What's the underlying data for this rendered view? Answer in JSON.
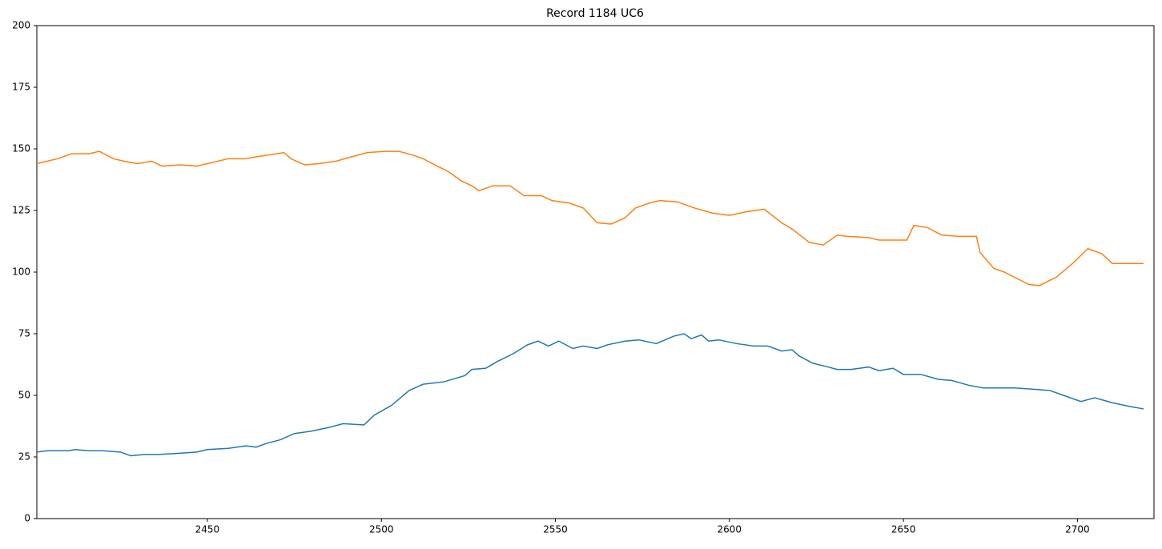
{
  "chart_data": {
    "type": "line",
    "title": "Record 1184 UC6",
    "xlim": [
      2401,
      2722
    ],
    "xticks": [
      2450,
      2500,
      2550,
      2600,
      2650,
      2700
    ],
    "ylim": [
      0,
      200
    ],
    "yticks": [
      0,
      25,
      50,
      75,
      100,
      125,
      150,
      175,
      200
    ],
    "grid": false,
    "series": [
      {
        "color": "#1f77b4",
        "x": [
          2401,
          2404,
          2410,
          2412,
          2416,
          2420,
          2425,
          2428,
          2432,
          2436,
          2442,
          2447,
          2450,
          2456,
          2461,
          2464,
          2467,
          2471,
          2475,
          2480,
          2485,
          2489,
          2495,
          2498,
          2503,
          2508,
          2512,
          2518,
          2524,
          2526,
          2530,
          2533,
          2538,
          2542,
          2545,
          2548,
          2551,
          2555,
          2558,
          2562,
          2565,
          2570,
          2574,
          2579,
          2584,
          2587,
          2589,
          2592,
          2594,
          2597,
          2602,
          2607,
          2611,
          2615,
          2618,
          2620,
          2624,
          2627,
          2631,
          2635,
          2640,
          2643,
          2647,
          2650,
          2655,
          2660,
          2664,
          2669,
          2673,
          2678,
          2682,
          2687,
          2692,
          2696,
          2701,
          2705,
          2710,
          2715,
          2719
        ],
        "values": [
          27,
          27.5,
          27.5,
          28,
          27.5,
          27.5,
          27,
          25.5,
          26,
          26,
          26.5,
          27,
          28,
          28.5,
          29.5,
          29,
          30.5,
          32,
          34.5,
          35.5,
          37,
          38.5,
          38,
          42,
          46,
          52,
          54.5,
          55.5,
          58,
          60.5,
          61,
          63.5,
          67,
          70.5,
          72,
          70,
          72,
          69,
          70,
          69,
          70.5,
          72,
          72.5,
          71,
          74,
          75,
          73,
          74.5,
          72,
          72.5,
          71,
          70,
          70,
          68,
          68.5,
          66,
          63,
          62,
          60.5,
          60.5,
          61.5,
          60,
          61,
          58.5,
          58.5,
          56.5,
          56,
          54,
          53,
          53,
          53,
          52.5,
          52,
          50,
          47.5,
          49,
          47,
          45.5,
          44.5
        ]
      },
      {
        "color": "#ff7f0e",
        "x": [
          2401,
          2404,
          2407,
          2411,
          2416,
          2419,
          2423,
          2426,
          2430,
          2434,
          2437,
          2442,
          2447,
          2450,
          2456,
          2461,
          2465,
          2470,
          2472,
          2474,
          2478,
          2482,
          2487,
          2492,
          2496,
          2501,
          2505,
          2509,
          2512,
          2516,
          2519,
          2523,
          2526,
          2528,
          2532,
          2537,
          2541,
          2546,
          2549,
          2554,
          2558,
          2562,
          2566,
          2570,
          2573,
          2577,
          2580,
          2585,
          2590,
          2595,
          2600,
          2605,
          2610,
          2615,
          2618,
          2623,
          2627,
          2631,
          2634,
          2640,
          2643,
          2647,
          2651,
          2653,
          2657,
          2661,
          2666,
          2671,
          2672,
          2676,
          2679,
          2686,
          2689,
          2694,
          2699,
          2703,
          2707,
          2710,
          2719
        ],
        "values": [
          144,
          145,
          146,
          148,
          148,
          149,
          146,
          145,
          144,
          145,
          143,
          143.5,
          143,
          144,
          146,
          146,
          147,
          148,
          148.5,
          146,
          143.5,
          144,
          145,
          147,
          148.5,
          149,
          149,
          147.5,
          146,
          143,
          141,
          137,
          135,
          133,
          135,
          135,
          131,
          131,
          129,
          128,
          126,
          120,
          119.5,
          122,
          126,
          128,
          129,
          128.5,
          126,
          124,
          123,
          124.5,
          125.5,
          120,
          117.5,
          112,
          111,
          115,
          114.5,
          114,
          113,
          113,
          113,
          119,
          118,
          115,
          114.5,
          114.5,
          108,
          101.5,
          100,
          95,
          94.5,
          98,
          104,
          109.5,
          107.5,
          103.5,
          103.5
        ]
      }
    ]
  }
}
